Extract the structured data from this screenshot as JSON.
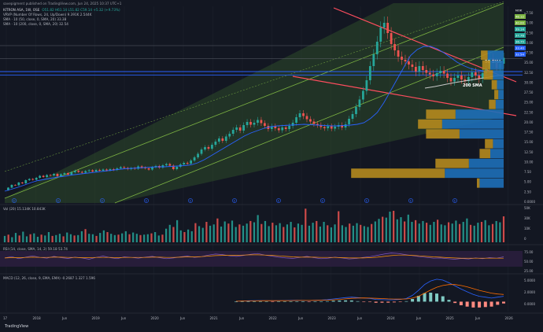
{
  "header": {
    "publisher": "savepigment published on TradingView.com, Jun 24, 2025 10:37 UTC+1",
    "ticker": "KITRON ASA, 1W, OSE",
    "ohlc": "O51.82 H61.14 L51.82 C59.14 +5.32 (+9.73%)",
    "vrvp": "VRVP (Number Of Rows, 24, Up/Down) 9.391K 2.544K",
    "sma50": "SMA · 10 (50, close, 0, SMA, 20) 33.38",
    "sma200": "SMA · 10 (200, close, 0, SMA, 20) 32.54"
  },
  "watermark": "TradingView",
  "colors": {
    "bg": "#131722",
    "grid": "#1e222d",
    "up": "#26a69a",
    "down": "#ef5350",
    "channel_fill": "#2e4a2a",
    "channel_line": "#7cb342",
    "trend_red": "#ff4d5e",
    "sma_blue": "#2962ff",
    "rsi_band": "#2a1e3d",
    "rsi_line": "#ff9800",
    "vp_up": "#1e6fb8",
    "vp_down": "#b5891e",
    "macd_line": "#2962ff",
    "signal_line": "#ff6d00"
  },
  "chart_data": [
    {
      "type": "candlestick",
      "title": "",
      "ylim": [
        0,
        50
      ],
      "x_ticks": [
        "17",
        "2018",
        "Jun",
        "2019",
        "Jun",
        "2020",
        "Jun",
        "2021",
        "Jun",
        "2022",
        "Jun",
        "2023",
        "Jun",
        "2024",
        "Jun",
        "2025",
        "Jun",
        "2026"
      ],
      "y_ticks": [
        "47.50",
        "45.00",
        "42.50",
        "40.00",
        "37.50",
        "35.00",
        "32.50",
        "30.00",
        "27.50",
        "25.00",
        "22.50",
        "20.00",
        "17.50",
        "15.00",
        "12.50",
        "10.00",
        "7.50",
        "5.00",
        "2.50",
        "0.0000"
      ],
      "price_tags": [
        {
          "label": "NOK",
          "color": "#131722"
        },
        {
          "label": "48.12",
          "color": "#7cb342"
        },
        {
          "label": "40.00",
          "color": "#7cb342"
        },
        {
          "label": "39.14",
          "color": "#26a69a"
        },
        {
          "label": "37.76",
          "color": "#26a69a"
        },
        {
          "label": "36.75",
          "color": "#26a69a"
        },
        {
          "label": "33.40",
          "color": "#2962ff"
        },
        {
          "label": "32.54",
          "color": "#2962ff"
        }
      ],
      "annotations": [
        "50 SMA",
        "200 SMA"
      ],
      "event_markers": [
        "E",
        "E",
        "E",
        "E",
        "E",
        "E",
        "E",
        "E",
        "E",
        "E",
        "E"
      ],
      "series": [
        {
          "name": "price",
          "values": [
            3.2,
            3.9,
            4.6,
            4.5,
            5.2,
            5.0,
            5.8,
            6.1,
            5.9,
            6.4,
            6.9,
            6.6,
            7.1,
            7.0,
            7.4,
            6.8,
            7.3,
            7.6,
            7.2,
            7.8,
            8.2,
            7.9,
            7.7,
            8.1,
            8.3,
            8.0,
            8.4,
            8.2,
            8.5,
            8.3,
            8.6,
            8.4,
            8.8,
            9.1,
            8.9,
            8.6,
            8.9,
            8.7,
            9.3,
            9.0,
            8.8,
            8.5,
            9.1,
            9.4,
            9.0,
            9.6,
            9.9,
            9.5,
            8.6,
            9.2,
            9.8,
            10.2,
            10.0,
            10.8,
            11.6,
            12.5,
            13.6,
            14.2,
            13.8,
            14.8,
            15.6,
            16.4,
            15.8,
            16.9,
            17.6,
            18.6,
            19.2,
            18.4,
            19.8,
            20.6,
            19.9,
            20.4,
            21.1,
            20.3,
            19.6,
            18.8,
            19.5,
            19.0,
            18.5,
            19.2,
            18.8,
            19.6,
            20.4,
            21.8,
            22.8,
            22.1,
            21.3,
            20.7,
            20.1,
            19.8,
            19.3,
            19.0,
            19.5,
            18.9,
            19.4,
            19.8,
            19.2,
            20.0,
            21.4,
            22.6,
            24.4,
            26.3,
            28.5,
            31.2,
            34.8,
            37.8,
            41.0,
            44.6,
            45.8,
            43.2,
            40.4,
            38.8,
            37.2,
            36.4,
            36.0,
            35.2,
            34.6,
            33.4,
            34.8,
            33.8,
            33.1,
            32.7,
            32.2,
            33.0,
            33.6,
            32.9,
            31.8,
            30.9,
            31.8,
            32.4,
            31.4,
            31.0,
            32.0,
            33.2,
            32.4,
            31.6,
            33.0,
            34.2,
            36.8,
            35.6,
            34.3,
            35.4,
            36.9
          ]
        },
        {
          "name": "SMA 50",
          "values": [
            3.0,
            3.5,
            4.0,
            4.6,
            5.2,
            5.7,
            6.0,
            6.3,
            6.6,
            6.8,
            7.1,
            7.3,
            7.5,
            7.7,
            7.9,
            8.1,
            8.3,
            8.5,
            8.7,
            8.8,
            8.9,
            9.0,
            9.1,
            9.2,
            9.2,
            9.3,
            9.4,
            9.5,
            9.7,
            10.2,
            11.0,
            12.0,
            13.0,
            14.0,
            15.0,
            16.0,
            17.0,
            17.8,
            18.4,
            19.0,
            19.4,
            19.6,
            19.7,
            19.8,
            19.9,
            20.0,
            19.9,
            19.8,
            19.7,
            19.6,
            19.6,
            19.7,
            19.8,
            20.0,
            20.4,
            21.5,
            23.0,
            25.5,
            28.5,
            31.5,
            34.5,
            37.5,
            39.0,
            39.8,
            39.8,
            39.2,
            38.2,
            37.0,
            35.8,
            34.9,
            34.2,
            33.8,
            33.6,
            33.5,
            33.4,
            33.4
          ]
        },
        {
          "name": "SMA 200",
          "values": [
            29.2,
            29.6,
            30.1,
            30.6,
            31.0,
            31.4,
            31.8,
            32.2,
            32.54
          ]
        }
      ],
      "volume_profile": [
        {
          "price": 37.5,
          "up": 0.12,
          "down": 0.05
        },
        {
          "price": 35.0,
          "up": 0.1,
          "down": 0.06
        },
        {
          "price": 32.5,
          "up": 0.08,
          "down": 0.07
        },
        {
          "price": 30.0,
          "up": 0.05,
          "down": 0.04
        },
        {
          "price": 27.5,
          "up": 0.04,
          "down": 0.03
        },
        {
          "price": 25.0,
          "up": 0.06,
          "down": 0.05
        },
        {
          "price": 22.5,
          "up": 0.36,
          "down": 0.22
        },
        {
          "price": 20.0,
          "up": 0.46,
          "down": 0.18
        },
        {
          "price": 17.5,
          "up": 0.33,
          "down": 0.25
        },
        {
          "price": 15.0,
          "up": 0.08,
          "down": 0.06
        },
        {
          "price": 12.5,
          "up": 0.1,
          "down": 0.08
        },
        {
          "price": 10.0,
          "up": 0.26,
          "down": 0.25
        },
        {
          "price": 7.5,
          "up": 0.44,
          "down": 0.7
        },
        {
          "price": 5.0,
          "up": 0.18,
          "down": 0.02
        }
      ]
    },
    {
      "type": "bar",
      "title": "Vol (20) 15.134K 10.843K",
      "y_ticks": [
        "50K",
        "30K",
        "10K",
        "0"
      ],
      "values": [
        1.5,
        1.8,
        1.2,
        2.2,
        1.6,
        2.5,
        1.4,
        1.9,
        2.1,
        1.3,
        1.8,
        1.6,
        2.4,
        1.5,
        1.7,
        2.0,
        1.4,
        2.3,
        1.9,
        1.6,
        1.7,
        2.6,
        3.1,
        2.0,
        1.9,
        1.5,
        2.2,
        2.8,
        2.4,
        2.0,
        1.7,
        1.8,
        2.1,
        2.6,
        1.9,
        2.3,
        2.0,
        1.7,
        1.8,
        1.9,
        2.1,
        2.4,
        1.6,
        1.8,
        3.2,
        4.1,
        3.6,
        5.2,
        2.8,
        2.4,
        3.0,
        2.6,
        4.5,
        3.8,
        3.4,
        4.8,
        3.9,
        4.2,
        5.6,
        3.7,
        4.9,
        4.4,
        5.1,
        3.6,
        4.2,
        3.9,
        4.4,
        5.0,
        4.7,
        6.4,
        4.3,
        5.0,
        3.8,
        4.6,
        4.0,
        4.5,
        3.6,
        4.2,
        4.8,
        3.5,
        4.4,
        4.1,
        7.9,
        3.9,
        4.6,
        5.0,
        3.7,
        4.8,
        4.0,
        3.5,
        4.2,
        7.3,
        4.0,
        3.6,
        4.4,
        3.9,
        4.5,
        4.1,
        3.8,
        3.6,
        4.3,
        4.9,
        5.5,
        6.0,
        5.8,
        7.2,
        7.4,
        5.4,
        5.9,
        4.9,
        6.5,
        4.8,
        5.2,
        4.4,
        5.0,
        4.6,
        4.1,
        4.8,
        5.3,
        4.2,
        4.0,
        4.7,
        4.4,
        5.1,
        4.3,
        4.8,
        5.6,
        4.1,
        3.9,
        4.6,
        4.8,
        5.2,
        4.0,
        4.3,
        5.0,
        4.7,
        6.1
      ]
    },
    {
      "type": "line",
      "title": "RSI (14, close, SMA, 14, 2) 59.18 53.74",
      "y_ticks": [
        "75.00",
        "50.00",
        "25.00"
      ],
      "series": [
        {
          "name": "RSI",
          "values": [
            55,
            60,
            52,
            58,
            63,
            57,
            54,
            61,
            56,
            53,
            58,
            55,
            50,
            57,
            62,
            56,
            52,
            59,
            57,
            54,
            58,
            61,
            56,
            52,
            55,
            59,
            62,
            57,
            60,
            66,
            70,
            68,
            63,
            61,
            65,
            69,
            72,
            66,
            62,
            58,
            55,
            53,
            57,
            61,
            56,
            52,
            54,
            58,
            55,
            51,
            53,
            57,
            60,
            65,
            70,
            74,
            72,
            68,
            64,
            60,
            57,
            54,
            55,
            52,
            50,
            53,
            51,
            55,
            52,
            56,
            54,
            59
          ]
        },
        {
          "name": "RSI SMA",
          "values": [
            55,
            56,
            56,
            57,
            58,
            57,
            57,
            58,
            58,
            57,
            57,
            56,
            56,
            57,
            57,
            57,
            56,
            57,
            57,
            57,
            57,
            58,
            58,
            57,
            57,
            58,
            59,
            59,
            60,
            62,
            64,
            65,
            65,
            65,
            66,
            67,
            67,
            66,
            65,
            63,
            61,
            59,
            58,
            58,
            58,
            57,
            57,
            57,
            56,
            55,
            55,
            55,
            56,
            58,
            61,
            64,
            66,
            66,
            65,
            63,
            61,
            59,
            58,
            56,
            55,
            54,
            54,
            54,
            54,
            54,
            54,
            54
          ]
        }
      ]
    },
    {
      "type": "line",
      "title": "MACD (12, 26, close, 9, EMA, EMA) -0.2687 1.327 1.596",
      "y_ticks": [
        "5.0000",
        "2.0000",
        "0.0000"
      ],
      "series": [
        {
          "name": "MACD",
          "values": [
            0.1,
            0.15,
            0.2,
            0.22,
            0.25,
            0.23,
            0.2,
            0.22,
            0.25,
            0.28,
            0.3,
            0.28,
            0.25,
            0.3,
            0.35,
            0.45,
            0.6,
            0.75,
            0.9,
            1.0,
            0.9,
            0.8,
            0.7,
            0.5,
            0.45,
            0.4,
            0.42,
            0.5,
            0.7,
            1.4,
            2.5,
            3.8,
            4.6,
            5.0,
            4.8,
            4.2,
            3.5,
            2.8,
            2.2,
            1.6,
            1.2,
            1.0,
            0.8,
            1.0,
            1.2
          ]
        },
        {
          "name": "Signal",
          "values": [
            0.1,
            0.12,
            0.15,
            0.18,
            0.2,
            0.21,
            0.21,
            0.21,
            0.22,
            0.24,
            0.26,
            0.27,
            0.27,
            0.28,
            0.3,
            0.34,
            0.4,
            0.5,
            0.62,
            0.74,
            0.8,
            0.82,
            0.8,
            0.74,
            0.68,
            0.62,
            0.58,
            0.56,
            0.6,
            0.8,
            1.2,
            1.9,
            2.6,
            3.2,
            3.6,
            3.8,
            3.8,
            3.6,
            3.3,
            2.9,
            2.5,
            2.2,
            1.9,
            1.7,
            1.6
          ]
        },
        {
          "name": "Histogram",
          "values": [
            0,
            0.03,
            0.05,
            0.04,
            0.05,
            0.02,
            -0.01,
            0.01,
            0.03,
            0.04,
            0.04,
            0.01,
            -0.02,
            0.02,
            0.05,
            0.11,
            0.2,
            0.25,
            0.28,
            0.26,
            0.1,
            -0.02,
            -0.1,
            -0.24,
            -0.23,
            -0.22,
            -0.16,
            -0.06,
            0.1,
            0.6,
            1.3,
            1.9,
            2.0,
            1.8,
            1.2,
            0.4,
            -0.3,
            -0.8,
            -1.1,
            -1.3,
            -1.3,
            -1.2,
            -1.1,
            -0.7,
            -0.4
          ]
        }
      ]
    }
  ]
}
